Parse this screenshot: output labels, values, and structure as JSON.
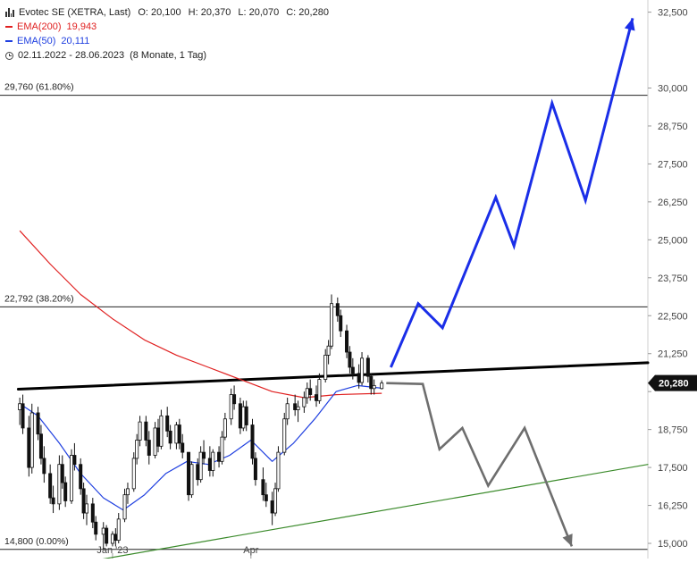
{
  "header": {
    "instrument": "Evotec SE (XETRA, Last)",
    "open": "O: 20,100",
    "high": "H: 20,370",
    "low": "L: 20,070",
    "close": "C: 20,280",
    "ema200_label": "EMA(200)",
    "ema200_value": "19,943",
    "ema50_label": "EMA(50)",
    "ema50_value": "20,111",
    "range": "02.11.2022 - 28.06.2023",
    "period": "(8 Monate, 1 Tag)"
  },
  "colors": {
    "ema200": "#e02020",
    "ema50": "#2040e0",
    "resistance_line": "#000000",
    "support_line": "#3a8a2a",
    "bull_path": "#1a2ee8",
    "bear_path": "#6e6e6e",
    "price_badge": "#111111"
  },
  "chart_data": {
    "type": "candlestick",
    "y_axis": {
      "scale": "linear",
      "range": [
        14.5,
        32.9
      ],
      "ticks": [
        15.0,
        16.25,
        17.5,
        18.75,
        20.0,
        21.25,
        22.5,
        23.75,
        25.0,
        26.25,
        27.5,
        28.75,
        30.0,
        32.5
      ],
      "tick_labels": [
        "15,000",
        "16,250",
        "17,500",
        "18,750",
        "",
        "21,250",
        "22,500",
        "23,750",
        "25,000",
        "26,250",
        "27,500",
        "28,750",
        "30,000",
        "32,500"
      ],
      "position": "right"
    },
    "x_axis": {
      "labels": [
        {
          "label": "Jan '23",
          "date": "2023-01-02"
        },
        {
          "label": "Apr",
          "date": "2023-04-03"
        }
      ],
      "visible_range": [
        "2022-10-20",
        "2023-12-20"
      ]
    },
    "last_price": {
      "value": 20.28,
      "label": "20,280"
    },
    "levels": [
      {
        "label": "29,760 (61.80%)",
        "value": 29.76
      },
      {
        "label": "22,792 (38.20%)",
        "value": 22.792
      },
      {
        "label": "14,800 (0.00%)",
        "value": 14.8
      }
    ],
    "candles": [
      [
        "2022-11-02",
        19.4,
        19.8,
        18.9,
        19.6
      ],
      [
        "2022-11-04",
        19.6,
        19.9,
        18.6,
        18.8
      ],
      [
        "2022-11-08",
        18.8,
        19.2,
        17.2,
        17.5
      ],
      [
        "2022-11-10",
        17.5,
        19.6,
        17.3,
        19.3
      ],
      [
        "2022-11-14",
        19.3,
        19.5,
        18.4,
        18.6
      ],
      [
        "2022-11-16",
        18.6,
        18.9,
        17.6,
        17.8
      ],
      [
        "2022-11-18",
        17.8,
        18.2,
        17.0,
        17.3
      ],
      [
        "2022-11-22",
        17.3,
        17.6,
        16.3,
        16.5
      ],
      [
        "2022-11-24",
        16.5,
        16.9,
        16.0,
        16.3
      ],
      [
        "2022-11-28",
        16.3,
        17.9,
        16.1,
        17.6
      ],
      [
        "2022-11-30",
        17.6,
        17.9,
        16.8,
        17.0
      ],
      [
        "2022-12-02",
        17.0,
        17.2,
        16.2,
        16.4
      ],
      [
        "2022-12-06",
        16.4,
        18.1,
        16.3,
        17.9
      ],
      [
        "2022-12-08",
        17.9,
        18.3,
        17.4,
        17.6
      ],
      [
        "2022-12-12",
        17.6,
        17.8,
        16.6,
        16.8
      ],
      [
        "2022-12-14",
        16.8,
        17.0,
        15.8,
        16.0
      ],
      [
        "2022-12-16",
        16.0,
        16.6,
        15.6,
        16.3
      ],
      [
        "2022-12-20",
        16.3,
        16.5,
        15.5,
        15.7
      ],
      [
        "2022-12-22",
        15.7,
        15.9,
        15.1,
        15.3
      ],
      [
        "2022-12-27",
        15.3,
        15.7,
        14.8,
        15.5
      ],
      [
        "2022-12-29",
        15.5,
        15.6,
        14.9,
        15.0
      ],
      [
        "2023-01-02",
        15.0,
        15.4,
        14.9,
        15.3
      ],
      [
        "2023-01-04",
        15.3,
        15.5,
        14.9,
        15.1
      ],
      [
        "2023-01-06",
        15.1,
        16.0,
        15.0,
        15.8
      ],
      [
        "2023-01-10",
        15.8,
        16.8,
        15.7,
        16.6
      ],
      [
        "2023-01-12",
        16.6,
        17.0,
        16.3,
        16.8
      ],
      [
        "2023-01-16",
        16.8,
        18.0,
        16.7,
        17.8
      ],
      [
        "2023-01-18",
        17.8,
        18.6,
        17.6,
        18.4
      ],
      [
        "2023-01-20",
        18.4,
        19.2,
        18.2,
        19.0
      ],
      [
        "2023-01-24",
        19.0,
        19.2,
        18.2,
        18.4
      ],
      [
        "2023-01-26",
        18.4,
        18.7,
        17.6,
        17.9
      ],
      [
        "2023-01-30",
        17.9,
        19.0,
        17.8,
        18.8
      ],
      [
        "2023-02-01",
        18.8,
        19.1,
        18.0,
        18.2
      ],
      [
        "2023-02-03",
        18.2,
        19.4,
        18.1,
        19.2
      ],
      [
        "2023-02-07",
        19.2,
        19.5,
        18.5,
        18.7
      ],
      [
        "2023-02-09",
        18.7,
        18.9,
        18.1,
        18.3
      ],
      [
        "2023-02-13",
        18.3,
        19.0,
        18.1,
        18.9
      ],
      [
        "2023-02-15",
        18.9,
        19.1,
        18.1,
        18.3
      ],
      [
        "2023-02-17",
        18.3,
        18.6,
        17.8,
        18.0
      ],
      [
        "2023-02-21",
        18.0,
        17.9,
        16.4,
        16.6
      ],
      [
        "2023-02-23",
        16.6,
        17.7,
        16.5,
        17.6
      ],
      [
        "2023-02-27",
        17.6,
        17.8,
        16.9,
        17.1
      ],
      [
        "2023-03-01",
        17.1,
        18.2,
        17.0,
        18.0
      ],
      [
        "2023-03-03",
        18.0,
        18.4,
        17.6,
        17.8
      ],
      [
        "2023-03-07",
        17.8,
        18.2,
        17.2,
        17.4
      ],
      [
        "2023-03-09",
        17.4,
        18.1,
        17.2,
        18.0
      ],
      [
        "2023-03-13",
        18.0,
        18.2,
        17.5,
        17.7
      ],
      [
        "2023-03-15",
        17.7,
        18.7,
        17.6,
        18.5
      ],
      [
        "2023-03-17",
        18.5,
        19.3,
        18.4,
        19.1
      ],
      [
        "2023-03-21",
        19.1,
        20.1,
        18.9,
        19.9
      ],
      [
        "2023-03-23",
        19.9,
        20.2,
        19.4,
        19.6
      ],
      [
        "2023-03-27",
        19.6,
        19.8,
        18.6,
        18.8
      ],
      [
        "2023-03-29",
        18.8,
        19.7,
        18.7,
        19.5
      ],
      [
        "2023-03-31",
        19.5,
        19.7,
        18.7,
        18.9
      ],
      [
        "2023-04-04",
        18.9,
        19.1,
        17.6,
        17.8
      ],
      [
        "2023-04-06",
        17.8,
        18.0,
        16.9,
        17.1
      ],
      [
        "2023-04-11",
        17.1,
        17.5,
        16.4,
        16.6
      ],
      [
        "2023-04-13",
        16.6,
        17.0,
        16.2,
        16.4
      ],
      [
        "2023-04-17",
        16.4,
        16.7,
        15.6,
        16.0
      ],
      [
        "2023-04-19",
        16.0,
        17.0,
        15.9,
        16.8
      ],
      [
        "2023-04-21",
        16.8,
        18.2,
        16.7,
        18.0
      ],
      [
        "2023-04-25",
        18.0,
        19.3,
        17.9,
        19.1
      ],
      [
        "2023-04-27",
        19.1,
        19.8,
        18.9,
        19.6
      ],
      [
        "2023-05-02",
        19.6,
        19.9,
        19.2,
        19.4
      ],
      [
        "2023-05-04",
        19.4,
        19.7,
        19.0,
        19.5
      ],
      [
        "2023-05-08",
        19.5,
        20.0,
        19.3,
        19.8
      ],
      [
        "2023-05-10",
        19.8,
        20.3,
        19.6,
        20.1
      ],
      [
        "2023-05-12",
        20.1,
        20.4,
        19.7,
        19.9
      ],
      [
        "2023-05-16",
        19.9,
        20.2,
        19.5,
        19.7
      ],
      [
        "2023-05-18",
        19.7,
        20.6,
        19.6,
        20.4
      ],
      [
        "2023-05-22",
        20.4,
        21.4,
        20.3,
        21.2
      ],
      [
        "2023-05-24",
        21.2,
        21.7,
        20.9,
        21.5
      ],
      [
        "2023-05-26",
        21.5,
        23.2,
        21.4,
        22.9
      ],
      [
        "2023-05-30",
        22.9,
        23.1,
        22.3,
        22.5
      ],
      [
        "2023-06-01",
        22.5,
        22.7,
        21.8,
        22.0
      ],
      [
        "2023-06-05",
        22.0,
        22.2,
        21.1,
        21.3
      ],
      [
        "2023-06-07",
        21.3,
        21.5,
        20.6,
        20.8
      ],
      [
        "2023-06-09",
        20.8,
        21.1,
        20.4,
        20.6
      ],
      [
        "2023-06-13",
        20.6,
        20.9,
        20.1,
        20.3
      ],
      [
        "2023-06-15",
        20.3,
        21.3,
        20.2,
        21.1
      ],
      [
        "2023-06-19",
        21.1,
        21.2,
        20.3,
        20.5
      ],
      [
        "2023-06-21",
        20.5,
        20.6,
        19.9,
        20.1
      ],
      [
        "2023-06-23",
        20.1,
        20.4,
        19.9,
        20.2
      ],
      [
        "2023-06-28",
        20.1,
        20.37,
        20.07,
        20.28
      ]
    ],
    "series": [
      {
        "name": "EMA(200)",
        "color": "#e02020",
        "points": [
          [
            "2022-11-02",
            25.3
          ],
          [
            "2022-11-22",
            24.2
          ],
          [
            "2022-12-12",
            23.2
          ],
          [
            "2023-01-02",
            22.4
          ],
          [
            "2023-01-23",
            21.7
          ],
          [
            "2023-02-13",
            21.2
          ],
          [
            "2023-03-06",
            20.8
          ],
          [
            "2023-03-27",
            20.4
          ],
          [
            "2023-04-17",
            20.0
          ],
          [
            "2023-05-08",
            19.8
          ],
          [
            "2023-05-29",
            19.9
          ],
          [
            "2023-06-28",
            19.943
          ]
        ]
      },
      {
        "name": "EMA(50)",
        "color": "#2040e0",
        "points": [
          [
            "2022-11-02",
            19.6
          ],
          [
            "2022-11-14",
            19.2
          ],
          [
            "2022-11-28",
            18.3
          ],
          [
            "2022-12-12",
            17.3
          ],
          [
            "2022-12-27",
            16.5
          ],
          [
            "2023-01-09",
            16.1
          ],
          [
            "2023-01-23",
            16.6
          ],
          [
            "2023-02-06",
            17.3
          ],
          [
            "2023-02-20",
            17.7
          ],
          [
            "2023-03-06",
            17.6
          ],
          [
            "2023-03-20",
            17.9
          ],
          [
            "2023-04-03",
            18.4
          ],
          [
            "2023-04-17",
            17.7
          ],
          [
            "2023-05-01",
            18.3
          ],
          [
            "2023-05-15",
            19.1
          ],
          [
            "2023-05-29",
            20.0
          ],
          [
            "2023-06-12",
            20.2
          ],
          [
            "2023-06-28",
            20.111
          ]
        ]
      }
    ],
    "trend_lines": [
      {
        "name": "resistance",
        "color": "#000000",
        "points": [
          [
            "2022-11-01",
            20.08
          ],
          [
            "2023-12-20",
            20.95
          ]
        ]
      },
      {
        "name": "support",
        "color": "#3a8a2a",
        "points": [
          [
            "2022-11-01",
            14.0
          ],
          [
            "2023-12-20",
            17.6
          ]
        ]
      }
    ],
    "projections": [
      {
        "name": "bullish-scenario",
        "color": "#1a2ee8",
        "arrow": true,
        "points": [
          [
            "2023-07-04",
            20.8
          ],
          [
            "2023-07-22",
            22.9
          ],
          [
            "2023-08-07",
            22.1
          ],
          [
            "2023-09-11",
            26.4
          ],
          [
            "2023-09-23",
            24.8
          ],
          [
            "2023-10-18",
            29.5
          ],
          [
            "2023-11-09",
            26.3
          ],
          [
            "2023-12-10",
            32.3
          ]
        ]
      },
      {
        "name": "bearish-scenario",
        "color": "#6e6e6e",
        "arrow": true,
        "points": [
          [
            "2023-07-01",
            20.28
          ],
          [
            "2023-07-25",
            20.25
          ],
          [
            "2023-08-05",
            18.1
          ],
          [
            "2023-08-20",
            18.8
          ],
          [
            "2023-09-06",
            16.9
          ],
          [
            "2023-09-30",
            18.8
          ],
          [
            "2023-10-31",
            14.9
          ]
        ]
      }
    ]
  }
}
